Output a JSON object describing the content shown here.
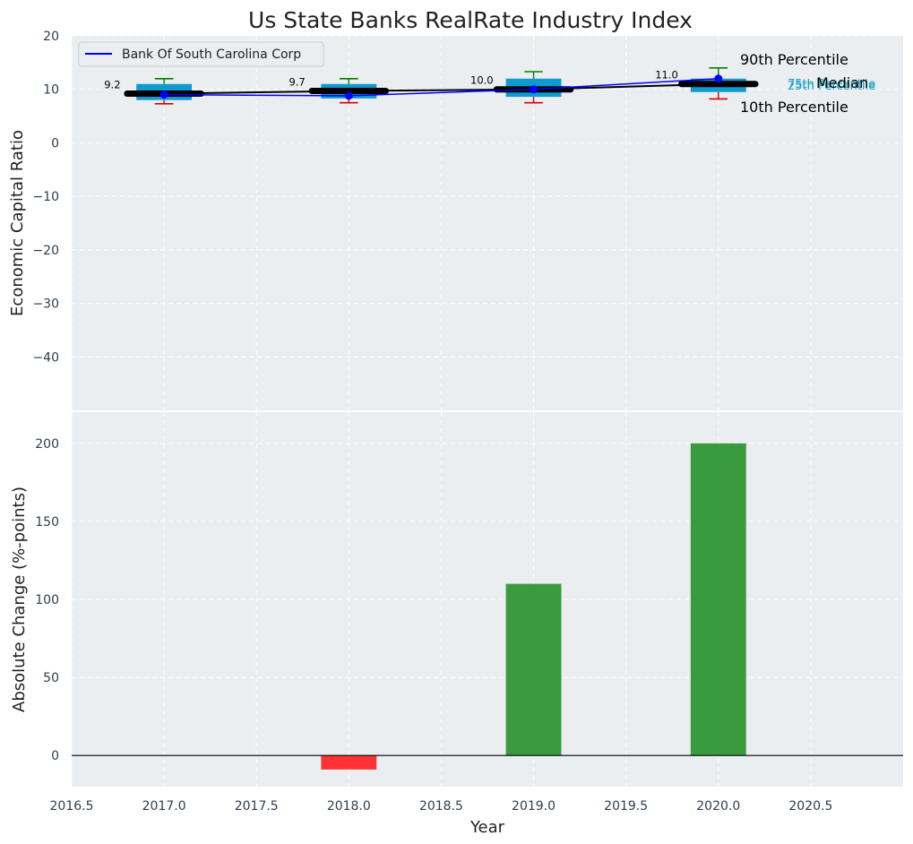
{
  "colors": {
    "plot_bg": "#eaeef0",
    "grid": "#ffffff",
    "box_fill": "#0e9bd0",
    "whisker_high": "#008000",
    "whisker_low": "#e00000",
    "median_line": "#000000",
    "company_line": "#0000ff",
    "bar_positive": "#3a9b3e",
    "bar_negative": "#ff3333",
    "quartile_label": "#17a2c8"
  },
  "chart_data": [
    {
      "type": "box",
      "title": "Us State Banks RealRate Industry Index",
      "xlabel": "",
      "ylabel": "Economic Capital Ratio",
      "xlim": [
        2016.5,
        2021.0
      ],
      "ylim": [
        -50,
        20
      ],
      "yticks": [
        20,
        10,
        0,
        -10,
        -20,
        -30,
        -40
      ],
      "grid": true,
      "years": [
        2017,
        2018,
        2019,
        2020
      ],
      "p10": [
        7.3,
        7.5,
        7.5,
        8.2
      ],
      "p25": [
        8.0,
        8.3,
        8.6,
        9.5
      ],
      "median": [
        9.2,
        9.7,
        10.0,
        11.0
      ],
      "p75": [
        11.0,
        11.0,
        12.0,
        12.0
      ],
      "p90": [
        12.0,
        12.0,
        13.3,
        14.0
      ],
      "median_labels": [
        "9.2",
        "9.7",
        "10.0",
        "11.0"
      ],
      "series": [
        {
          "name": "Bank Of South Carolina Corp",
          "values": [
            9.0,
            8.8,
            10.0,
            12.0
          ]
        }
      ],
      "legend": {
        "label": "Bank Of South Carolina Corp",
        "position": "top-left"
      },
      "annotations": {
        "p90": "90th Percentile",
        "median": "Median",
        "p10": "10th Percentile",
        "p75": "75th Percentile",
        "p25": "25th Percentile"
      }
    },
    {
      "type": "bar",
      "xlabel": "Year",
      "ylabel": "Absolute Change (%-points)",
      "xlim": [
        2016.5,
        2021.0
      ],
      "ylim": [
        -20,
        220
      ],
      "yticks": [
        200,
        150,
        100,
        50,
        0
      ],
      "xticks": [
        2016.5,
        2017.0,
        2017.5,
        2018.0,
        2018.5,
        2019.0,
        2019.5,
        2020.0,
        2020.5
      ],
      "xtick_labels": [
        "2016.5",
        "2017.0",
        "2017.5",
        "2018.0",
        "2018.5",
        "2019.0",
        "2019.5",
        "2020.0",
        "2020.5"
      ],
      "grid": true,
      "categories": [
        2017,
        2018,
        2019,
        2020
      ],
      "values": [
        0,
        -9,
        110,
        200
      ]
    }
  ]
}
